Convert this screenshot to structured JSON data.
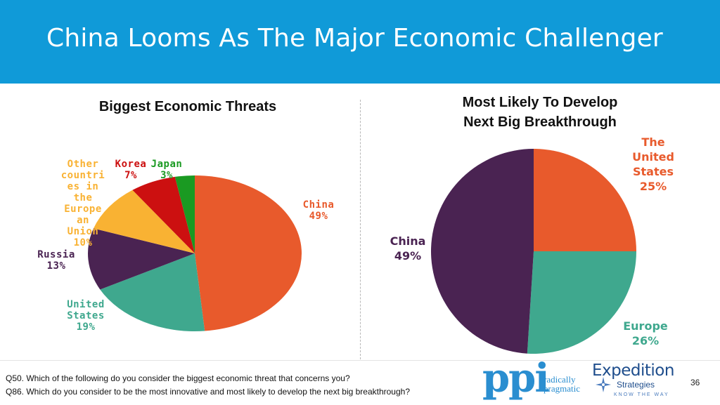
{
  "slide": {
    "title": "China Looms As The Major Economic Challenger",
    "page_number": "36"
  },
  "left_chart_title": "Biggest Economic Threats",
  "right_chart_title_line1": "Most Likely To Develop",
  "right_chart_title_line2": "Next Big Breakthrough",
  "chart_data": [
    {
      "type": "pie",
      "title": "Biggest Economic Threats",
      "labels": [
        "China",
        "United States",
        "Russia",
        "Other countries in the European Union",
        "Korea",
        "Japan"
      ],
      "values": [
        49,
        19,
        13,
        10,
        7,
        3
      ],
      "colors": [
        "#e85a2c",
        "#3fa88e",
        "#4a2352",
        "#f9b233",
        "#cc1010",
        "#1a9a22"
      ],
      "slice_labels": {
        "china": [
          "China",
          "49%"
        ],
        "us": [
          "United",
          "States",
          "19%"
        ],
        "russia": [
          "Russia",
          "13%"
        ],
        "eu": [
          "Other",
          "countri",
          "es in",
          "the",
          "Europe",
          "an",
          "Union",
          "10%"
        ],
        "korea": [
          "Korea",
          "7%"
        ],
        "japan": [
          "Japan",
          "3%"
        ]
      }
    },
    {
      "type": "pie",
      "title": "Most Likely To Develop Next Big Breakthrough",
      "labels": [
        "The United States",
        "Europe",
        "China"
      ],
      "values": [
        25,
        26,
        49
      ],
      "colors": [
        "#e85a2c",
        "#3fa88e",
        "#4a2352"
      ],
      "slice_labels": {
        "us": [
          "The",
          "United",
          "States",
          "25%"
        ],
        "europe": [
          "Europe",
          "26%"
        ],
        "china": [
          "China",
          "49%"
        ]
      }
    }
  ],
  "footer": {
    "q50": "Q50. Which of the following do you consider the biggest economic threat that concerns you?",
    "q86": "Q86. Which do you consider to be the most innovative and most likely to develop the next big breakthrough?"
  },
  "logos": {
    "ppi_word": "ppi",
    "ppi_tagline_1": "radically",
    "ppi_tagline_2": "pragmatic",
    "expedition_word": "Expedition",
    "expedition_sub": "Strategies",
    "expedition_tag": "KNOW THE WAY"
  }
}
